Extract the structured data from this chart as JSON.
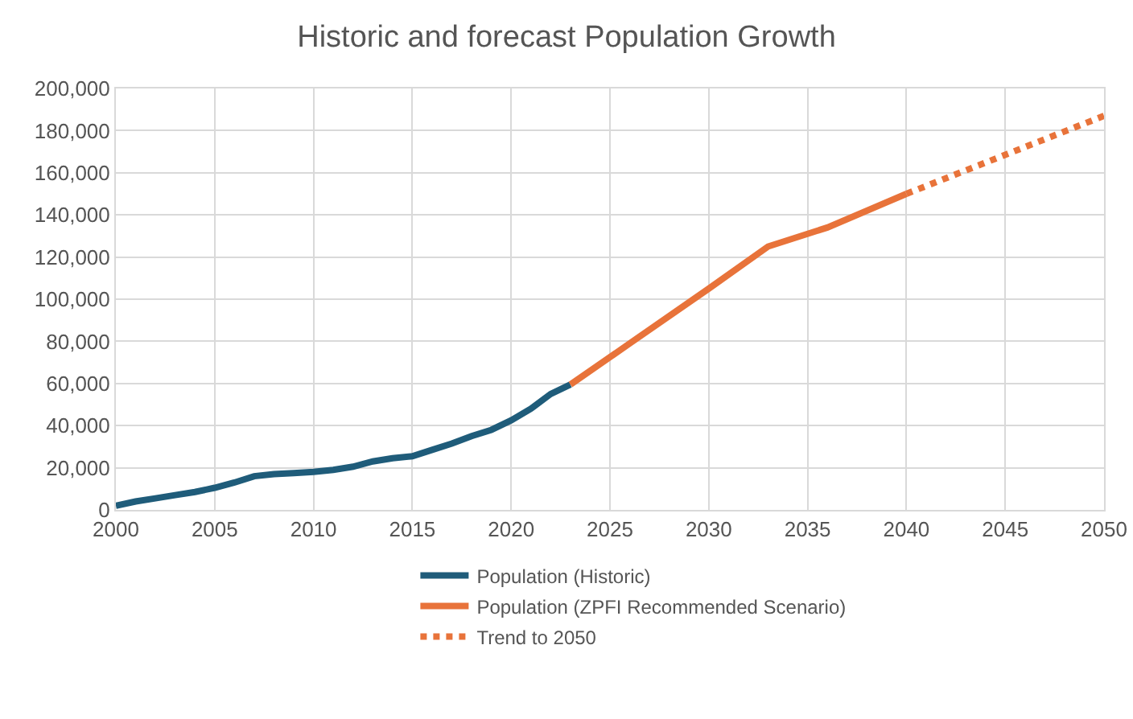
{
  "chart_data": {
    "type": "line",
    "title": "Historic and forecast Population Growth",
    "xlim": [
      2000,
      2050
    ],
    "xticks": [
      2000,
      2005,
      2010,
      2015,
      2020,
      2025,
      2030,
      2035,
      2040,
      2045,
      2050
    ],
    "ylim": [
      0,
      200000
    ],
    "yticks": [
      {
        "value": 0,
        "label": "0"
      },
      {
        "value": 20000,
        "label": "20,000"
      },
      {
        "value": 40000,
        "label": "40,000"
      },
      {
        "value": 60000,
        "label": "60,000"
      },
      {
        "value": 80000,
        "label": "80,000"
      },
      {
        "value": 100000,
        "label": "100,000"
      },
      {
        "value": 120000,
        "label": "120,000"
      },
      {
        "value": 140000,
        "label": "140,000"
      },
      {
        "value": 160000,
        "label": "160,000"
      },
      {
        "value": 180000,
        "label": "180,000"
      },
      {
        "value": 200000,
        "label": "200,000"
      }
    ],
    "grid": true,
    "legend": "bottom",
    "marker": "none",
    "series": [
      {
        "name": "Population (Historic)",
        "color": "#1f5c7a",
        "line_style": "solid",
        "x": [
          2000,
          2001,
          2002,
          2003,
          2004,
          2005,
          2006,
          2007,
          2008,
          2009,
          2010,
          2011,
          2012,
          2013,
          2014,
          2015,
          2016,
          2017,
          2018,
          2019,
          2020,
          2021,
          2022,
          2023
        ],
        "values": [
          2000,
          4000,
          5500,
          7000,
          8500,
          10500,
          13000,
          16000,
          17000,
          17500,
          18000,
          19000,
          20500,
          23000,
          24500,
          25500,
          28500,
          31500,
          35000,
          38000,
          42500,
          48000,
          55000,
          59500
        ]
      },
      {
        "name": "Population (ZPFI Recommended Scenario)",
        "color": "#e8733a",
        "line_style": "solid",
        "x": [
          2023,
          2026,
          2030,
          2033,
          2036,
          2040
        ],
        "values": [
          59500,
          79000,
          105000,
          125000,
          134000,
          150000
        ]
      },
      {
        "name": "Trend to 2050",
        "color": "#e8733a",
        "line_style": "dotted",
        "x": [
          2040,
          2050
        ],
        "values": [
          150000,
          187000
        ]
      }
    ]
  }
}
